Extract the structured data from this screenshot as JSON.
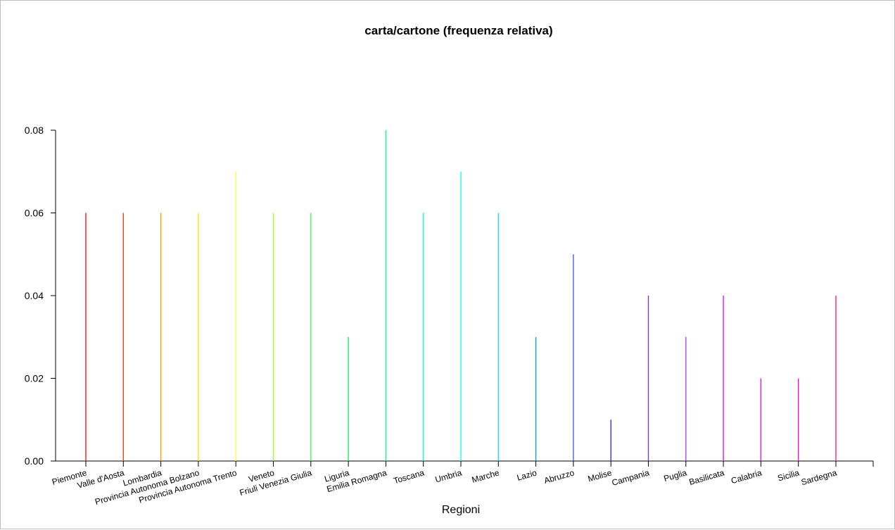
{
  "chart_data": {
    "type": "bar",
    "title": "carta/cartone  (frequenza relativa)",
    "xlabel": "Regioni",
    "ylabel": "",
    "ylim": [
      0,
      0.08
    ],
    "yticks": [
      "0.00",
      "0.02",
      "0.04",
      "0.06",
      "0.08"
    ],
    "categories": [
      "Piemonte",
      "Valle d'Aosta",
      "Lombardia",
      "Provincia Autonoma Bolzano",
      "Provincia Autonoma Trento",
      "Veneto",
      "Friuli Venezia Giulia",
      "Liguria",
      "Emilia Romagna",
      "Toscana",
      "Umbria",
      "Marche",
      "Lazio",
      "Abruzzo",
      "Molise",
      "Campania",
      "Puglia",
      "Basilicata",
      "Calabria",
      "Sicilia",
      "Sardegna"
    ],
    "values": [
      0.06,
      0.06,
      0.06,
      0.06,
      0.07,
      0.06,
      0.06,
      0.03,
      0.08,
      0.06,
      0.07,
      0.06,
      0.03,
      0.05,
      0.01,
      0.04,
      0.03,
      0.04,
      0.02,
      0.02,
      0.04
    ],
    "colors": [
      "#ff0000",
      "#ff3300",
      "#ff9900",
      "#ffdd00",
      "#ffff33",
      "#99ff33",
      "#33ff33",
      "#00ee55",
      "#00ff88",
      "#00ffcc",
      "#00ffdd",
      "#00ddff",
      "#0099ff",
      "#3355ff",
      "#2222ff",
      "#6633ff",
      "#aa33ff",
      "#dd00ff",
      "#ff00ee",
      "#ff00cc",
      "#ff1177"
    ],
    "grid": false,
    "legend": "none"
  }
}
